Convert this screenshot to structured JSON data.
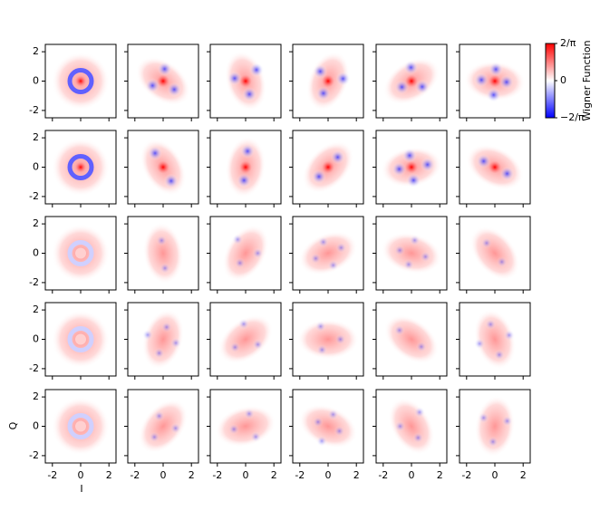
{
  "chart_data": {
    "type": "heatmap-grid",
    "rows": 5,
    "columns": 6,
    "xlabel": "I",
    "ylabel": "Q",
    "xlim": [
      -2.5,
      2.5
    ],
    "ylim": [
      -2.5,
      2.5
    ],
    "xticks": [
      -2,
      0,
      2
    ],
    "yticks": [
      -2,
      0,
      2
    ],
    "colormap": [
      "#0000ff",
      "#ffffff",
      "#ff0000"
    ],
    "colorbar": {
      "label": "Wigner Function",
      "lim": [
        -0.6366,
        0.6366
      ],
      "ticks": [
        {
          "value": 0.6366,
          "label": "2/π"
        },
        0,
        {
          "value": -0.6366,
          "label": "−2/π"
        }
      ]
    }
  }
}
